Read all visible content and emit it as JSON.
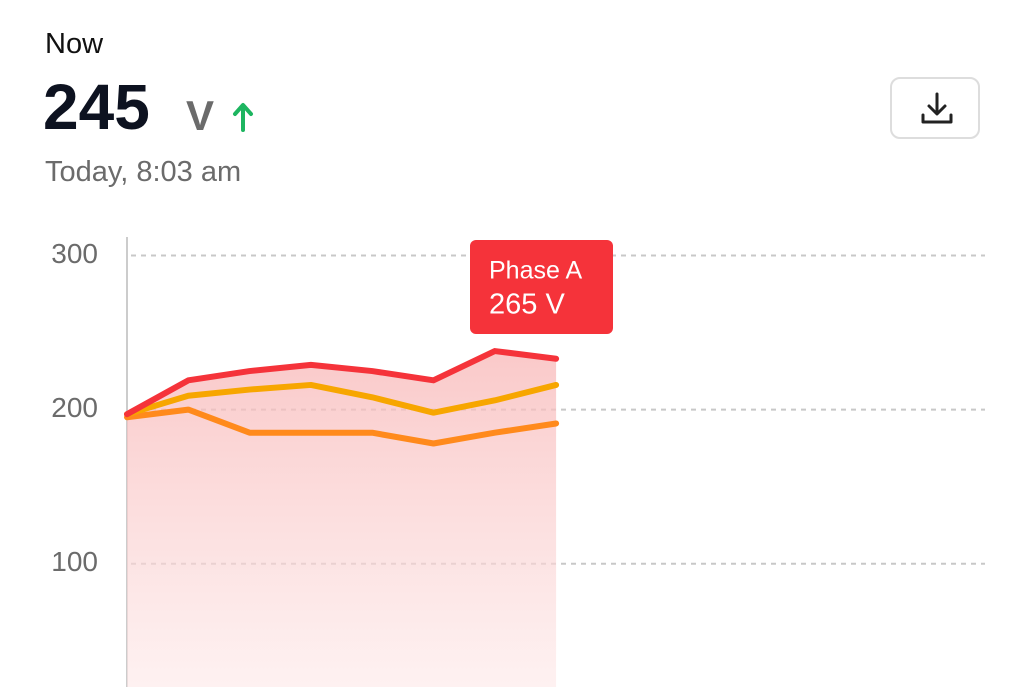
{
  "header": {
    "label": "Now",
    "value": "245",
    "unit": "V",
    "time": "Today, 8:03 am"
  },
  "chart_data": {
    "type": "line",
    "categories": [
      null,
      null,
      null,
      null,
      null,
      null,
      null,
      null
    ],
    "series": [
      {
        "color": "#f5333a",
        "values": [
          197,
          219,
          225,
          229,
          225,
          219,
          238,
          233
        ],
        "area": true
      },
      {
        "color": "#f7a600",
        "values": [
          197,
          209,
          213,
          216,
          208,
          198,
          206,
          216
        ]
      },
      {
        "color": "#ff8a1c",
        "values": [
          195,
          200,
          185,
          185,
          185,
          178,
          185,
          191
        ]
      }
    ],
    "ylim": [
      20,
      312
    ],
    "yticks": [
      100,
      200,
      300
    ],
    "grid": true,
    "annotation": {
      "title": "Phase A",
      "text": "265 V",
      "color": "#f5333a"
    }
  }
}
